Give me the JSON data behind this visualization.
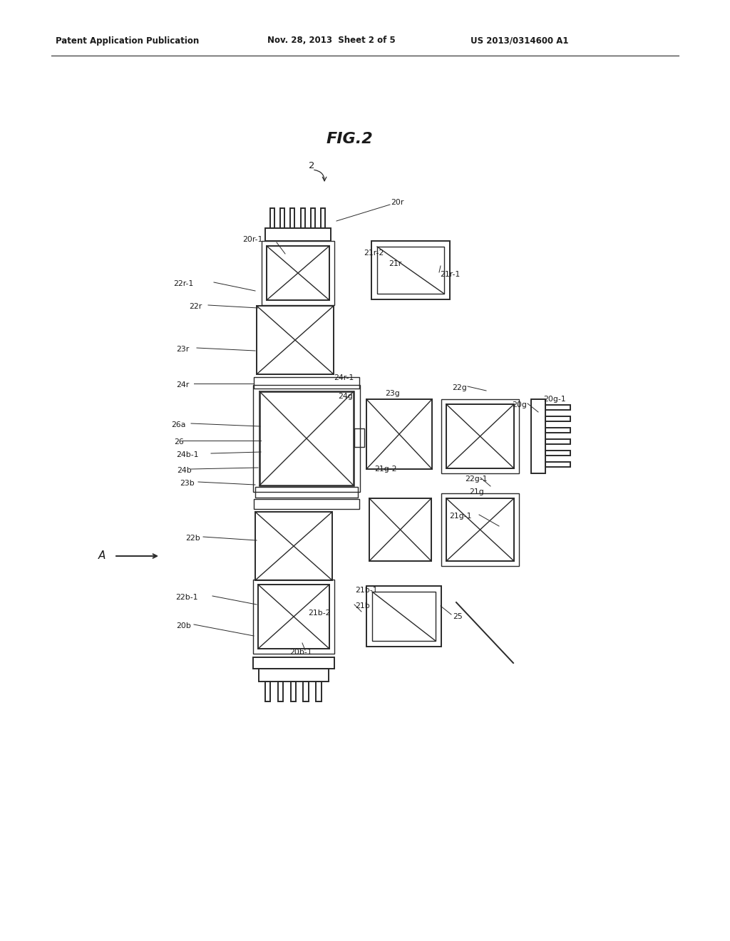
{
  "background": "#ffffff",
  "line_color": "#2a2a2a",
  "text_color": "#1a1a1a",
  "header_left": "Patent Application Publication",
  "header_mid": "Nov. 28, 2013  Sheet 2 of 5",
  "header_right": "US 2013/0314600 A1",
  "fig_title": "FIG.2",
  "fig_num": "2",
  "lw_main": 1.4,
  "lw_frame": 1.0,
  "lw_diag": 1.0,
  "lw_label": 0.7,
  "fs_label": 7.8
}
